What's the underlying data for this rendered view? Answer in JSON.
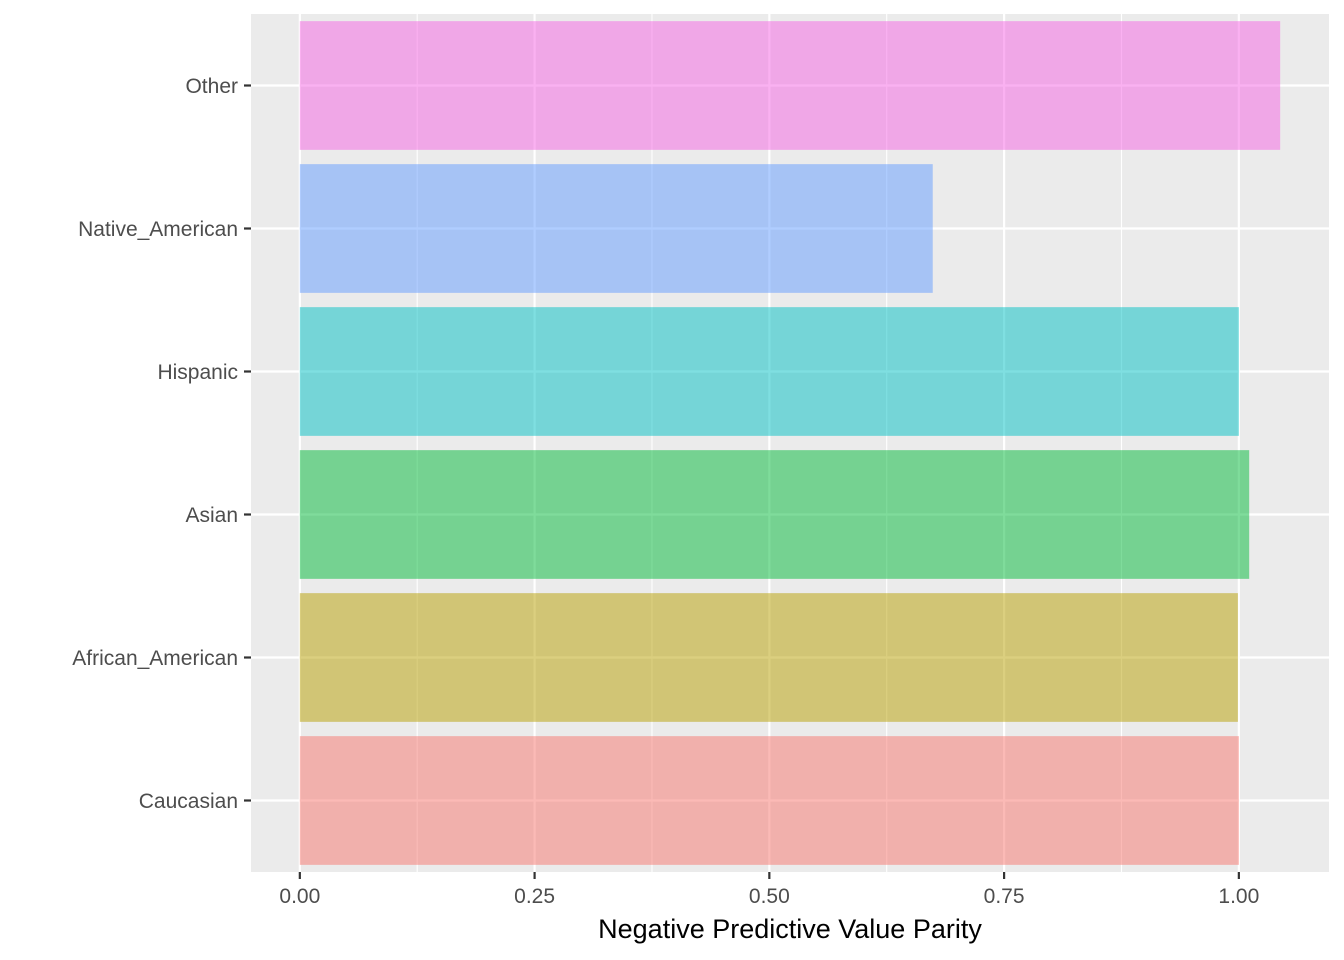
{
  "chart_data": {
    "type": "bar",
    "orientation": "horizontal",
    "categories": [
      "Caucasian",
      "African_American",
      "Asian",
      "Hispanic",
      "Native_American",
      "Other"
    ],
    "values": [
      1.0,
      0.999,
      1.011,
      1.0,
      0.674,
      1.044
    ],
    "colors": [
      "#F8766D",
      "#B79F00",
      "#00BA38",
      "#00BFC4",
      "#619CFF",
      "#F564E3"
    ],
    "bar_opacity": 0.5,
    "xlabel": "Negative Predictive Value Parity",
    "ylabel": "",
    "x_ticks": [
      0,
      0.25,
      0.5,
      0.75,
      1.0
    ],
    "x_tick_labels": [
      "0.00",
      "0.25",
      "0.50",
      "0.75",
      "1.00"
    ],
    "xlim": [
      -0.052,
      1.096
    ],
    "legend": "none",
    "grid": true,
    "panel_background": "#EBEBEB",
    "grid_color": "#FFFFFF"
  }
}
